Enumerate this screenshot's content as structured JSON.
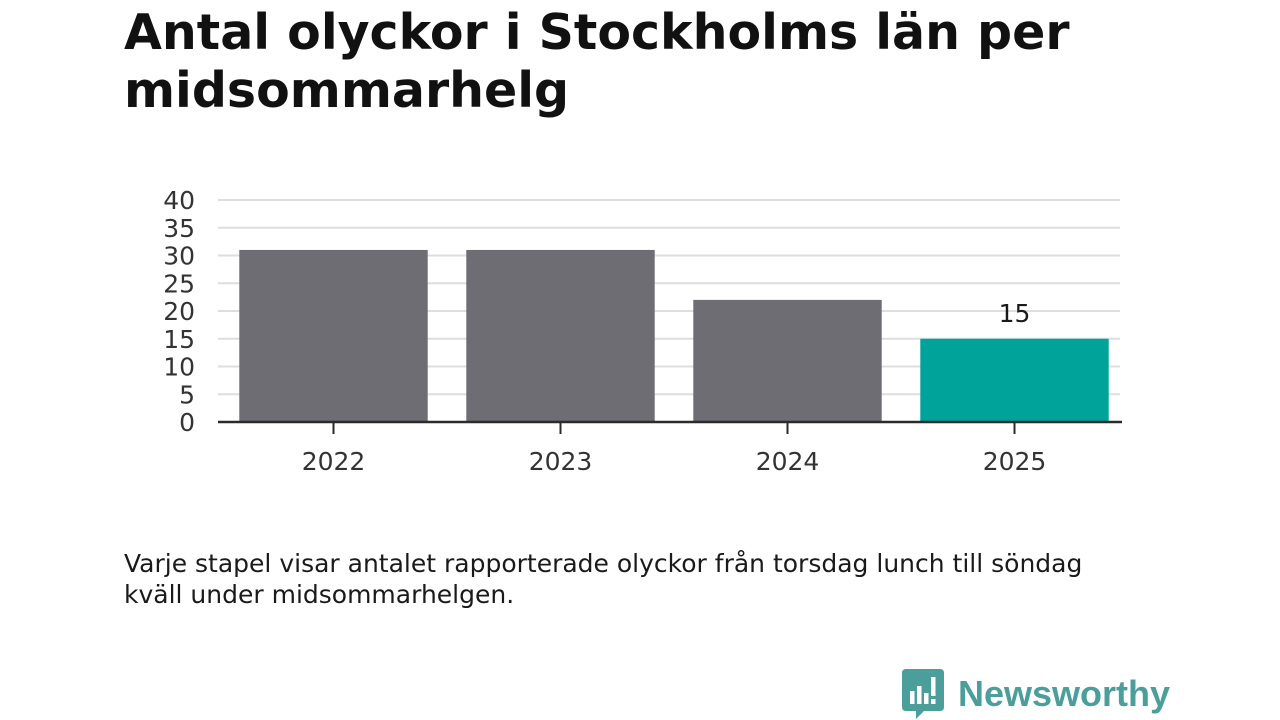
{
  "chart_data": {
    "type": "bar",
    "title": "Antal olyckor i Stockholms län per midsommarhelg",
    "categories": [
      "2022",
      "2023",
      "2024",
      "2025"
    ],
    "values": [
      31,
      31,
      22,
      15
    ],
    "data_labels": [
      "",
      "",
      "",
      "15"
    ],
    "ylim": [
      0,
      40
    ],
    "yticks": [
      0,
      5,
      10,
      15,
      20,
      25,
      30,
      35,
      40
    ],
    "xlabel": "",
    "ylabel": "",
    "grid": true,
    "bar_colors": [
      "#6e6d73",
      "#6e6d73",
      "#6e6d73",
      "#00a39a"
    ]
  },
  "caption": "Varje stapel visar antalet rapporterade olyckor från torsdag lunch till söndag kväll under midsommarhelgen.",
  "brand": {
    "name": "Newsworthy",
    "color": "#4c9e9a",
    "icon": "chat-bar-chart-icon"
  }
}
